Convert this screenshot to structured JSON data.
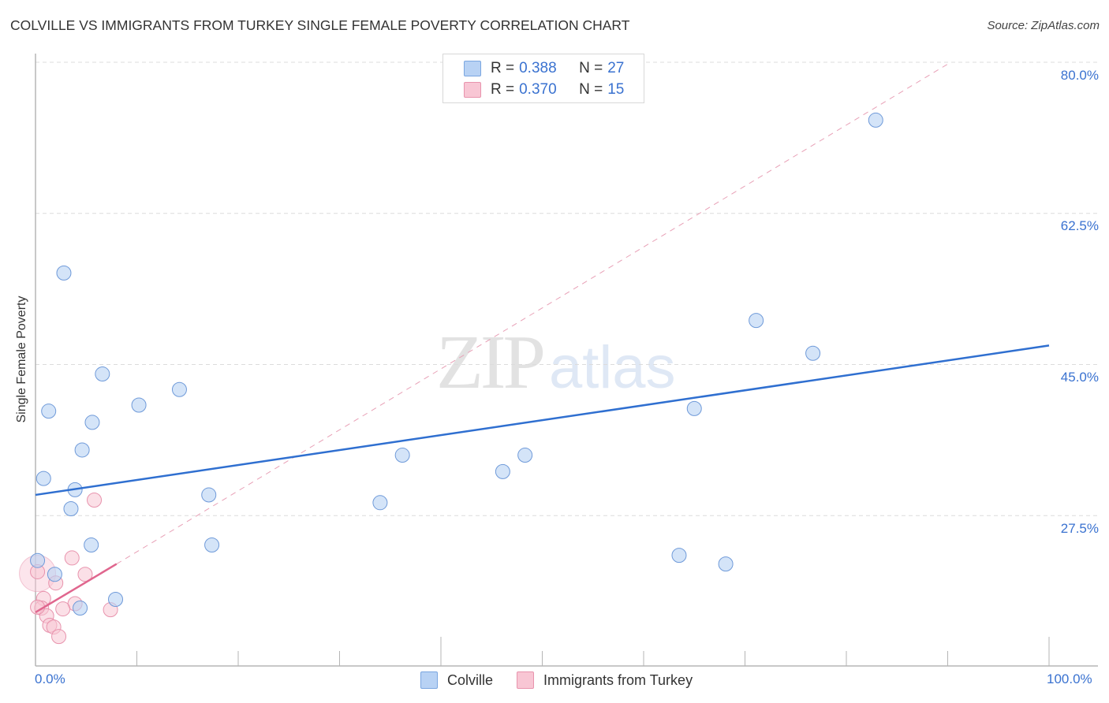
{
  "header": {
    "title": "COLVILLE VS IMMIGRANTS FROM TURKEY SINGLE FEMALE POVERTY CORRELATION CHART",
    "source": "Source: ZipAtlas.com"
  },
  "watermark": {
    "zip": "ZIP",
    "atlas": "atlas"
  },
  "legend": {
    "rows": [
      {
        "r_label": "R =",
        "r_value": "0.388",
        "n_label": "N =",
        "n_value": "27",
        "color": "#b8d2f4",
        "border": "#7aa6e0"
      },
      {
        "r_label": "R =",
        "r_value": "0.370",
        "n_label": "N =",
        "n_value": "15",
        "color": "#f8c6d4",
        "border": "#e893ad"
      }
    ]
  },
  "bottom_legend": {
    "items": [
      {
        "label": "Colville",
        "color": "#b8d2f4",
        "border": "#7aa6e0"
      },
      {
        "label": "Immigrants from Turkey",
        "color": "#f8c6d4",
        "border": "#e893ad"
      }
    ]
  },
  "axes": {
    "y_ticks": [
      "80.0%",
      "62.5%",
      "45.0%",
      "27.5%"
    ],
    "x_ticks": [
      "0.0%",
      "100.0%"
    ],
    "ylabel": "Single Female Poverty"
  },
  "colors": {
    "blue_series": "#3a72d0",
    "blue_fill": "#b8d2f4",
    "pink_series": "#e0668e",
    "pink_fill": "#f8c6d4",
    "tick_text": "#3a72d0"
  },
  "chart_data": {
    "type": "scatter",
    "title": "COLVILLE VS IMMIGRANTS FROM TURKEY SINGLE FEMALE POVERTY CORRELATION CHART",
    "xlabel": "",
    "ylabel": "Single Female Poverty",
    "xlim": [
      0,
      100
    ],
    "ylim": [
      10.5,
      81
    ],
    "x_tick_labels": [
      "0.0%",
      "100.0%"
    ],
    "y_tick_labels": [
      "27.5%",
      "45.0%",
      "62.5%",
      "80.0%"
    ],
    "y_gridlines": [
      27.5,
      45.0,
      62.5,
      80.0
    ],
    "grid": true,
    "legend_position": "top-center",
    "series": [
      {
        "name": "Colville",
        "R": 0.388,
        "N": 27,
        "color": "#3a72d0",
        "points": [
          [
            2.8,
            55.6
          ],
          [
            6.6,
            43.9
          ],
          [
            1.3,
            39.6
          ],
          [
            10.2,
            40.3
          ],
          [
            14.2,
            42.1
          ],
          [
            5.6,
            38.3
          ],
          [
            4.6,
            35.1
          ],
          [
            0.8,
            31.8
          ],
          [
            3.9,
            30.5
          ],
          [
            3.5,
            28.3
          ],
          [
            17.1,
            29.9
          ],
          [
            5.5,
            24.1
          ],
          [
            17.4,
            24.1
          ],
          [
            0.2,
            22.3
          ],
          [
            1.9,
            20.7
          ],
          [
            4.4,
            16.8
          ],
          [
            7.9,
            17.8
          ],
          [
            36.2,
            34.5
          ],
          [
            34.0,
            29.0
          ],
          [
            46.1,
            32.6
          ],
          [
            48.3,
            34.5
          ],
          [
            65.0,
            39.9
          ],
          [
            71.1,
            50.1
          ],
          [
            76.7,
            46.3
          ],
          [
            63.5,
            22.9
          ],
          [
            68.1,
            21.9
          ],
          [
            82.9,
            73.3
          ]
        ],
        "trendline": {
          "x": [
            0,
            100
          ],
          "y": [
            29.9,
            47.2
          ],
          "style": "solid"
        }
      },
      {
        "name": "Immigrants from Turkey",
        "R": 0.37,
        "N": 15,
        "color": "#e0668e",
        "points": [
          [
            5.8,
            29.3
          ],
          [
            3.6,
            22.6
          ],
          [
            0.2,
            21.0
          ],
          [
            4.9,
            20.7
          ],
          [
            2.0,
            19.7
          ],
          [
            0.8,
            17.9
          ],
          [
            3.9,
            17.3
          ],
          [
            0.6,
            16.8
          ],
          [
            2.7,
            16.7
          ],
          [
            7.4,
            16.6
          ],
          [
            1.1,
            15.9
          ],
          [
            1.4,
            14.8
          ],
          [
            1.8,
            14.6
          ],
          [
            2.3,
            13.5
          ],
          [
            0.2,
            16.9
          ]
        ],
        "trendline": {
          "x": [
            0,
            8
          ],
          "y": [
            16.3,
            21.9
          ],
          "style": "solid",
          "extended": {
            "x": [
              8,
              90.3
            ],
            "y": [
              21.9,
              80.0
            ],
            "style": "dashed"
          }
        }
      }
    ]
  }
}
